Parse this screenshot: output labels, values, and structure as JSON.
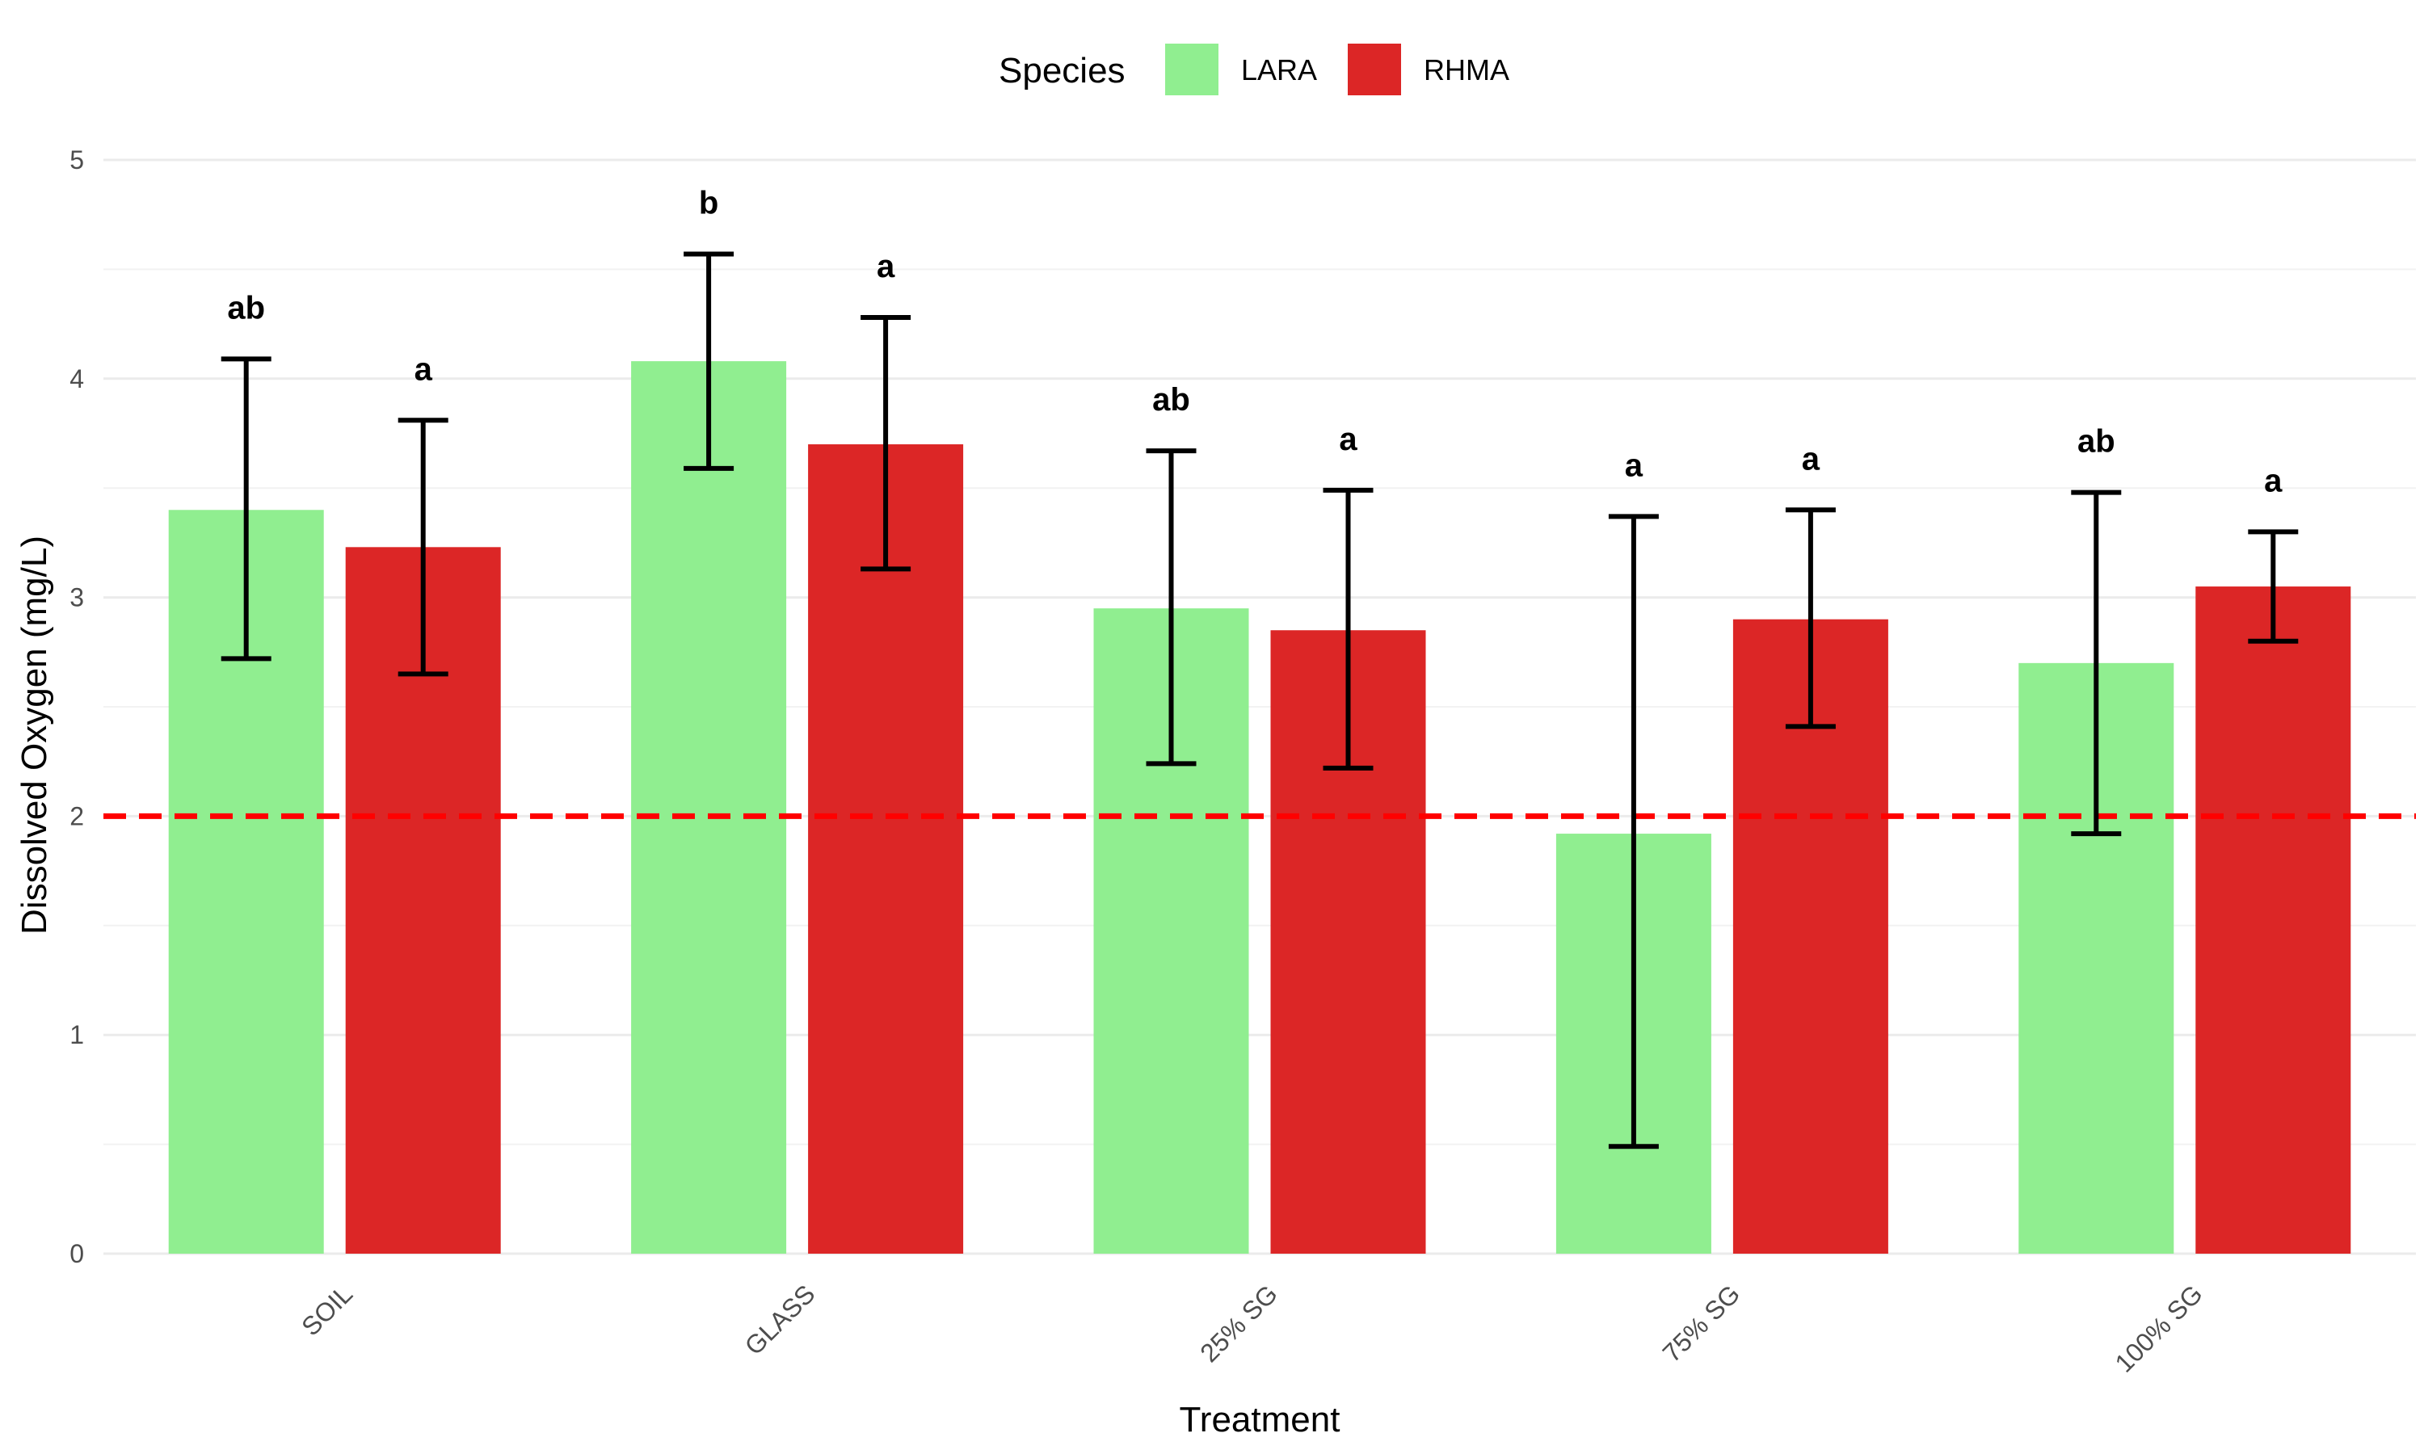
{
  "chart_data": {
    "type": "bar",
    "title": "",
    "xlabel": "Treatment",
    "ylabel": "Dissolved Oxygen (mg/L)",
    "ylim": [
      0,
      5
    ],
    "yticks": [
      0,
      1,
      2,
      3,
      4,
      5
    ],
    "grid": true,
    "legend": {
      "title": "Species",
      "position": "top"
    },
    "categories": [
      "SOIL",
      "GLASS",
      "25% SG",
      "75% SG",
      "100% SG"
    ],
    "series": [
      {
        "name": "LARA",
        "color": "#90EE90",
        "values": [
          3.4,
          4.08,
          2.95,
          1.92,
          2.7
        ],
        "error_low": [
          2.72,
          3.59,
          2.24,
          0.49,
          1.92
        ],
        "error_high": [
          4.09,
          4.57,
          3.67,
          3.37,
          3.48
        ],
        "labels": [
          "ab",
          "b",
          "ab",
          "a",
          "ab"
        ]
      },
      {
        "name": "RHMA",
        "color": "#DC2626",
        "values": [
          3.23,
          3.7,
          2.85,
          2.9,
          3.05
        ],
        "error_low": [
          2.65,
          3.13,
          2.22,
          2.41,
          2.8
        ],
        "error_high": [
          3.81,
          4.28,
          3.49,
          3.4,
          3.3
        ],
        "labels": [
          "a",
          "a",
          "a",
          "a",
          "a"
        ]
      }
    ],
    "reference_line": {
      "y": 2,
      "color": "#FF0000",
      "style": "dashed"
    }
  }
}
